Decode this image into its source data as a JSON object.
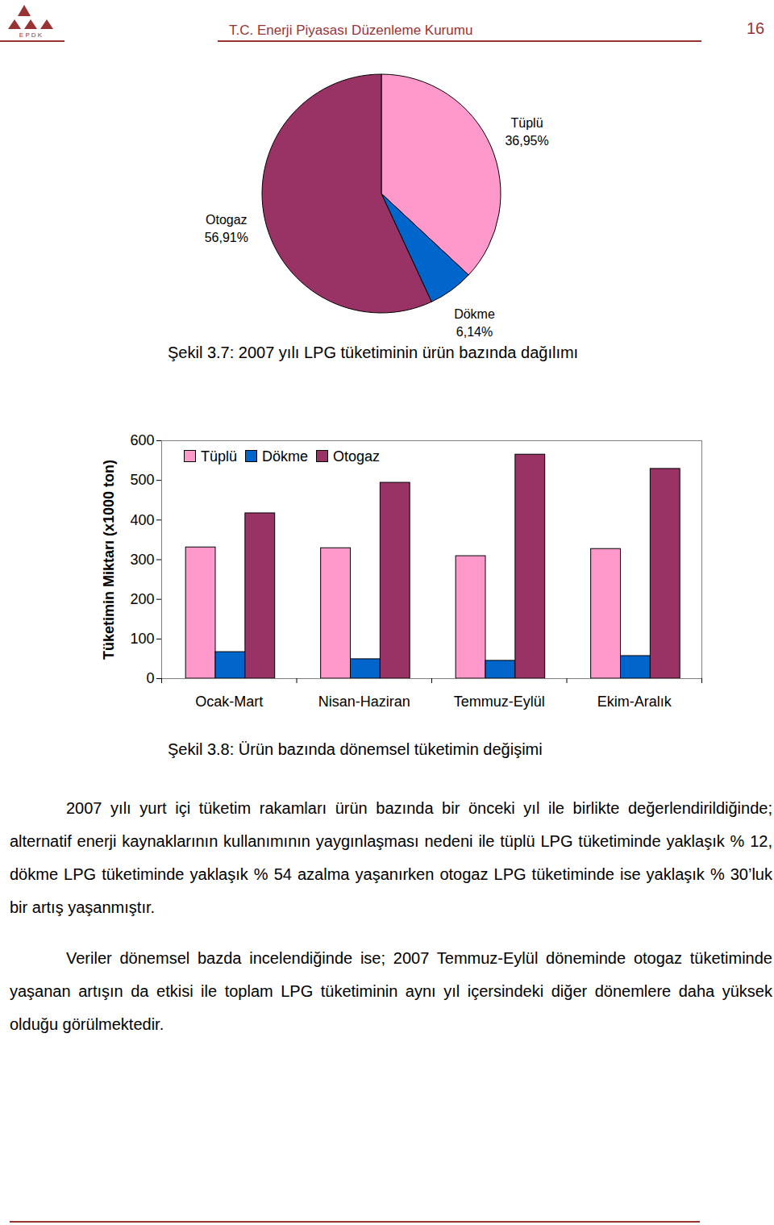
{
  "header": {
    "logo": "E P D K",
    "title": "T.C. Enerji Piyasası Düzenleme Kurumu",
    "page": "16"
  },
  "chart_data": [
    {
      "type": "pie",
      "caption": "Şekil 3.7: 2007 yılı LPG tüketiminin ürün bazında dağılımı",
      "categories": [
        "Tüplü",
        "Dökme",
        "Otogaz"
      ],
      "values": [
        36.95,
        6.14,
        56.91
      ],
      "value_labels": [
        "36,95%",
        "6,14%",
        "56,91%"
      ],
      "colors": [
        "#ff99cc",
        "#0066cc",
        "#993366"
      ],
      "data_labels": true
    },
    {
      "type": "bar",
      "caption": "Şekil 3.8: Ürün bazında dönemsel tüketimin değişimi",
      "y_label": "Tüketimin Miktarı (x1000 ton)",
      "categories": [
        "Ocak-Mart",
        "Nisan-Haziran",
        "Temmuz-Eylül",
        "Ekim-Aralık"
      ],
      "series": [
        {
          "name": "Tüplü",
          "color": "#ff99cc",
          "values": [
            331,
            329,
            309,
            327
          ]
        },
        {
          "name": "Dökme",
          "color": "#0066cc",
          "values": [
            67,
            49,
            45,
            57
          ]
        },
        {
          "name": "Otogaz",
          "color": "#993366",
          "values": [
            417,
            494,
            565,
            529
          ]
        }
      ],
      "ylim": [
        0,
        600
      ],
      "yticks": [
        0,
        100,
        200,
        300,
        400,
        500,
        600
      ],
      "grid": false,
      "legend": "upper left"
    }
  ],
  "paragraphs": [
    "2007 yılı yurt içi tüketim rakamları ürün bazında bir önceki yıl ile birlikte değerlendirildiğinde; alternatif enerji kaynaklarının kullanımının yaygınlaşması nedeni ile tüplü LPG tüketiminde yaklaşık % 12, dökme LPG tüketiminde yaklaşık % 54 azalma yaşanırken otogaz LPG tüketiminde ise yaklaşık % 30’luk bir artış yaşanmıştır.",
    "Veriler dönemsel bazda incelendiğinde ise; 2007 Temmuz-Eylül döneminde otogaz tüketiminde yaşanan artışın da etkisi ile toplam LPG tüketiminin aynı yıl içersindeki diğer dönemlere daha yüksek olduğu görülmektedir."
  ]
}
